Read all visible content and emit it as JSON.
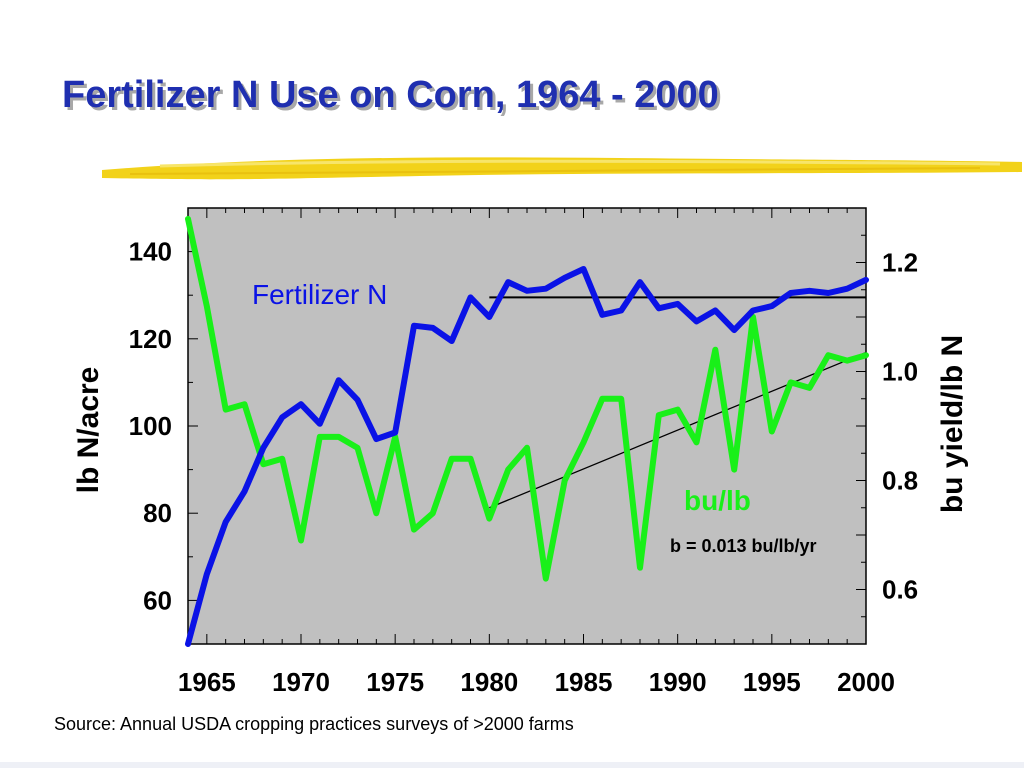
{
  "page": {
    "title": "Fertilizer N Use on Corn, 1964 - 2000",
    "source": "Source: Annual USDA cropping practices surveys of >2000 farms"
  },
  "colors": {
    "title": "#1f2fb0",
    "plot_bg": "#c0c0c0",
    "fertilizer_n": "#0a12e6",
    "bu_per_lb": "#19f019",
    "trend": "#000000",
    "underline": "#f2d21a"
  },
  "chart_data": {
    "type": "line",
    "title": "Fertilizer N Use on Corn, 1964 - 2000",
    "xlabel": "",
    "ylabel": "lb N/acre",
    "y2label": "bu yield/lb N",
    "xlim": [
      1964,
      2000
    ],
    "ylim": [
      50,
      150
    ],
    "y2lim": [
      0.5,
      1.3
    ],
    "x_ticks": [
      1965,
      1970,
      1975,
      1980,
      1985,
      1990,
      1995,
      2000
    ],
    "y_ticks": [
      60,
      80,
      100,
      120,
      140
    ],
    "y2_ticks": [
      "0.6",
      "0.8",
      "1.0",
      "1.2"
    ],
    "grid": false,
    "series": [
      {
        "name": "Fertilizer N",
        "axis": "left",
        "x": [
          1964,
          1965,
          1966,
          1967,
          1968,
          1969,
          1970,
          1971,
          1972,
          1973,
          1974,
          1975,
          1976,
          1977,
          1978,
          1979,
          1980,
          1981,
          1982,
          1983,
          1984,
          1985,
          1986,
          1987,
          1988,
          1989,
          1990,
          1991,
          1992,
          1993,
          1994,
          1995,
          1996,
          1997,
          1998,
          1999,
          2000
        ],
        "values": [
          50,
          66,
          78,
          85,
          95,
          102,
          105,
          100.5,
          110.5,
          106,
          97,
          98.5,
          123,
          122.5,
          119.5,
          129.5,
          125,
          133,
          131,
          131.5,
          134,
          136,
          125.5,
          126.5,
          133,
          127,
          128,
          124,
          126.5,
          122,
          126.5,
          127.5,
          130.5,
          131,
          130.5,
          131.5,
          133.5
        ]
      },
      {
        "name": "bu/lb",
        "axis": "right",
        "x": [
          1964,
          1965,
          1966,
          1967,
          1968,
          1969,
          1970,
          1971,
          1972,
          1973,
          1974,
          1975,
          1976,
          1977,
          1978,
          1979,
          1980,
          1981,
          1982,
          1983,
          1984,
          1985,
          1986,
          1987,
          1988,
          1989,
          1990,
          1991,
          1992,
          1993,
          1994,
          1995,
          1996,
          1997,
          1998,
          1999,
          2000
        ],
        "values": [
          1.28,
          1.12,
          0.93,
          0.94,
          0.83,
          0.84,
          0.69,
          0.88,
          0.88,
          0.86,
          0.74,
          0.88,
          0.71,
          0.74,
          0.84,
          0.84,
          0.73,
          0.82,
          0.86,
          0.62,
          0.8,
          0.87,
          0.95,
          0.95,
          0.64,
          0.92,
          0.93,
          0.87,
          1.04,
          0.82,
          1.1,
          0.89,
          0.98,
          0.97,
          1.03,
          1.02,
          1.03
        ]
      }
    ],
    "trend_lines": [
      {
        "axis": "left",
        "x": [
          1980,
          2000
        ],
        "values": [
          129.5,
          129.5
        ]
      },
      {
        "axis": "right",
        "x": [
          1980,
          2000
        ],
        "values": [
          0.75,
          1.035
        ]
      }
    ],
    "annotations": {
      "fertilizer_n_label": "Fertilizer N",
      "bu_lb_label": "bu/lb",
      "slope_label": "b = 0.013 bu/lb/yr"
    }
  }
}
